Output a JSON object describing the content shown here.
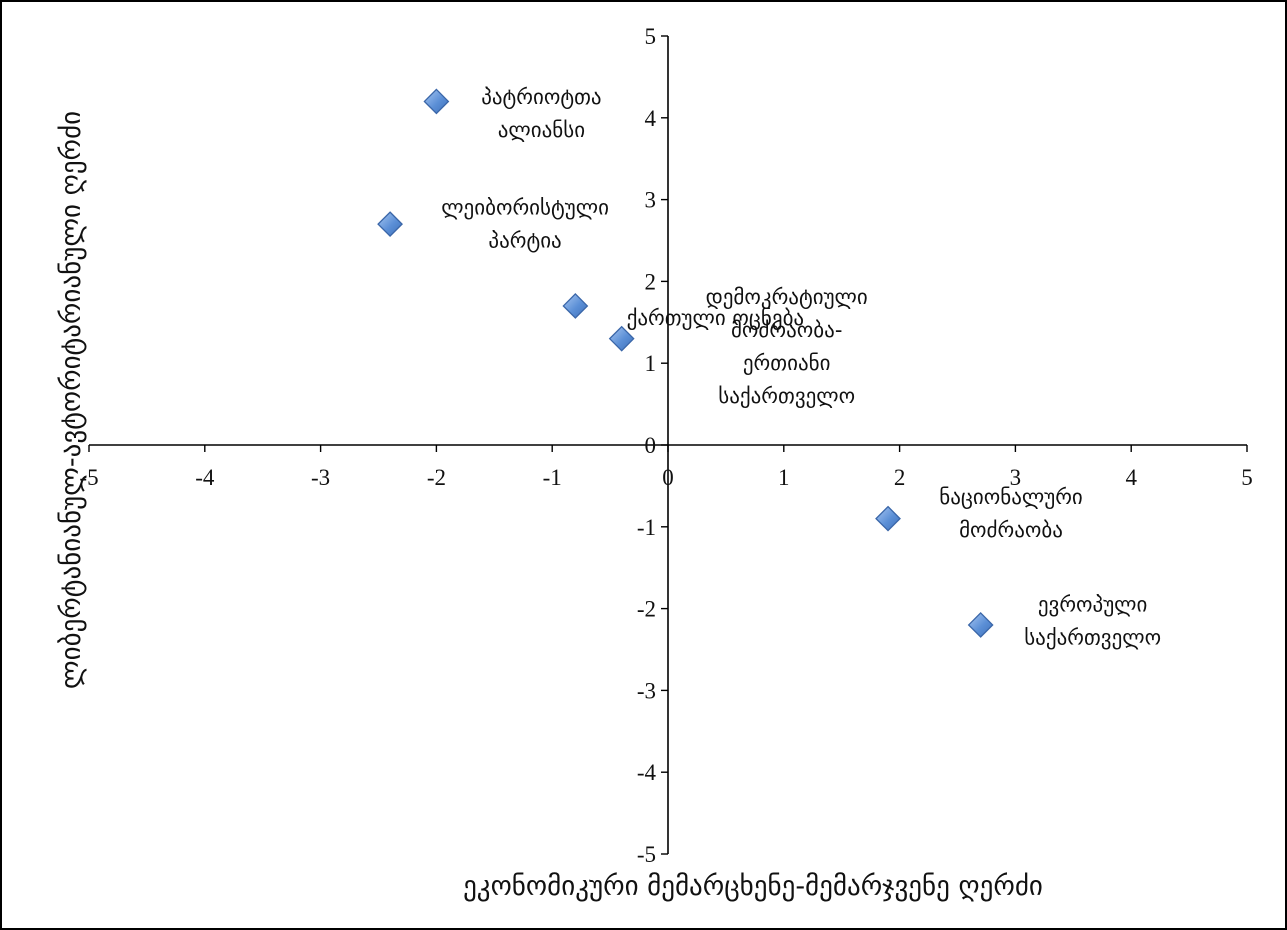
{
  "chart_data": {
    "type": "scatter",
    "title": "",
    "xlabel": "ეკონომიკური მემარცხენე-მემარჯვენე ღერძი",
    "ylabel": "ლიბერტანიანულ-ავტორიტარიანული ღერძი",
    "xlim": [
      -5,
      5
    ],
    "ylim": [
      -5,
      5
    ],
    "xticks": [
      "-5",
      "-4",
      "-3",
      "-2",
      "-1",
      "0",
      "1",
      "2",
      "3",
      "4",
      "5"
    ],
    "yticks": [
      "5",
      "4",
      "3",
      "2",
      "1",
      "0",
      "-1",
      "-2",
      "-3",
      "-4",
      "-5"
    ],
    "grid": false,
    "legend": "none",
    "marker_color": "#5b8fd6",
    "points": [
      {
        "x": -2.0,
        "y": 4.2,
        "label_lines": [
          "პატრიოტთა",
          "ალიანსი"
        ]
      },
      {
        "x": -2.4,
        "y": 2.7,
        "label_lines": [
          "ლეიბორისტული",
          "პარტია"
        ]
      },
      {
        "x": -0.8,
        "y": 1.7,
        "label_lines": [
          "ქართული ოცნება"
        ]
      },
      {
        "x": -0.4,
        "y": 1.3,
        "label_lines": [
          "დემოკრატიული",
          "მოძრაობა-",
          "ერთიანი",
          "საქართველო"
        ]
      },
      {
        "x": 1.9,
        "y": -0.9,
        "label_lines": [
          "ნაციონალური",
          "მოძრაობა"
        ]
      },
      {
        "x": 2.7,
        "y": -2.2,
        "label_lines": [
          "ევროპული",
          "საქართველო"
        ]
      }
    ]
  }
}
